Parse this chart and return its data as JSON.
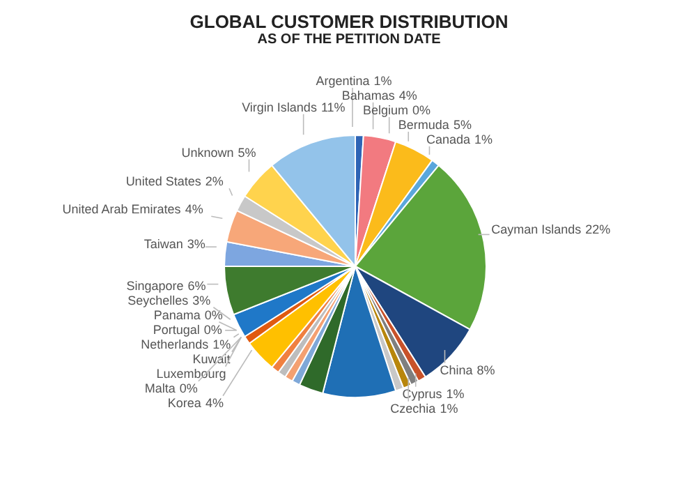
{
  "chart_data": {
    "type": "pie",
    "title": "GLOBAL CUSTOMER DISTRIBUTION",
    "subtitle": "AS OF THE PETITION DATE",
    "categories": [
      "Argentina",
      "Bahamas",
      "Belgium",
      "Bermuda",
      "Canada",
      "Cayman Islands",
      "China",
      "Cyprus",
      "Czechia",
      null,
      null,
      null,
      null,
      null,
      null,
      null,
      null,
      "Korea",
      "Kuwait",
      "Luxembourg",
      "Malta",
      "Netherlands",
      "Panama",
      "Portugal",
      "Seychelles",
      "Singapore",
      "Taiwan",
      "United Arab Emirates",
      "United States",
      "Unknown",
      "Virgin Islands"
    ],
    "values": [
      1,
      4,
      0,
      5,
      1,
      22,
      8,
      1,
      1,
      1,
      1,
      9,
      3,
      1,
      1,
      1,
      1,
      4,
      0,
      0,
      0,
      1,
      0,
      0,
      3,
      6,
      3,
      4,
      2,
      5,
      11
    ],
    "value_labels": [
      "1%",
      "4%",
      "0%",
      "5%",
      "1%",
      "22%",
      "8%",
      "1%",
      "1%",
      null,
      null,
      null,
      null,
      null,
      null,
      null,
      null,
      "4%",
      null,
      null,
      "0%",
      "1%",
      "0%",
      "0%",
      "3%",
      "6%",
      "3%",
      "4%",
      "2%",
      "5%",
      "11%"
    ],
    "colors": [
      "#2e64b5",
      "#f27a80",
      "#e8e8e8",
      "#fbbb1b",
      "#5aa7dc",
      "#5ba53b",
      "#1f467f",
      "#c8522a",
      "#7f7f7f",
      "#b8860b",
      "#c8c8c8",
      "#1f6fb5",
      "#2f6a2a",
      "#7fa8d8",
      "#f4a071",
      "#bdbdbd",
      "#f08040",
      "#ffc000",
      "#70ad47",
      "#4472c4",
      "#9e480e",
      "#e05a10",
      "#5470c6",
      "#a9d18e",
      "#1f78c8",
      "#3e7b2e",
      "#7da6e0",
      "#f7a779",
      "#c8c8c8",
      "#ffd34d",
      "#93c3ea"
    ]
  }
}
